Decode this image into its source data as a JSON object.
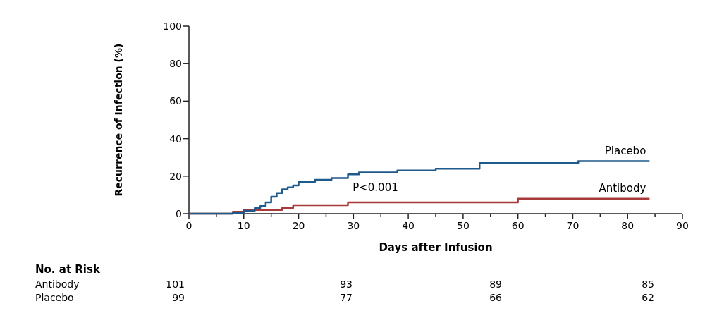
{
  "chart_data": {
    "type": "step",
    "xlabel": "Days after Infusion",
    "ylabel": "Recurrence of Infection (%)",
    "xlim": [
      0,
      90
    ],
    "ylim": [
      0,
      100
    ],
    "xticks": [
      0,
      {
        "value": 5,
        "label": null
      },
      10,
      {
        "value": 15,
        "label": null
      },
      20,
      {
        "value": 25,
        "label": null
      },
      30,
      {
        "value": 35,
        "label": null
      },
      40,
      {
        "value": 45,
        "label": null
      },
      50,
      {
        "value": 55,
        "label": null
      },
      60,
      {
        "value": 65,
        "label": null
      },
      70,
      {
        "value": 75,
        "label": null
      },
      80,
      {
        "value": 85,
        "label": null
      },
      90
    ],
    "yticks": [
      0,
      20,
      40,
      60,
      80,
      100
    ],
    "grid": false,
    "series": [
      {
        "name": "Antibody",
        "color": "#a83a3a",
        "x": [
          0,
          7,
          8,
          10,
          17,
          19,
          29,
          60,
          84
        ],
        "values": [
          0,
          0,
          1,
          2,
          3,
          4.5,
          6,
          8,
          8
        ]
      },
      {
        "name": "Placebo",
        "color": "#1f5a8c",
        "x": [
          0,
          7,
          8,
          10,
          12,
          13,
          14,
          15,
          16,
          17,
          18,
          19,
          20,
          23,
          26,
          29,
          31,
          38,
          45,
          53,
          71,
          84
        ],
        "values": [
          0,
          0,
          0.5,
          1.5,
          3,
          4,
          6,
          9,
          11,
          13,
          14,
          15,
          17,
          18,
          19,
          21,
          22,
          23,
          24,
          27,
          28,
          28
        ]
      }
    ],
    "annotations": [
      "P<0.001",
      "No. at Risk",
      "101",
      "93",
      "89",
      "85",
      "99",
      "77",
      "66",
      "62"
    ]
  }
}
